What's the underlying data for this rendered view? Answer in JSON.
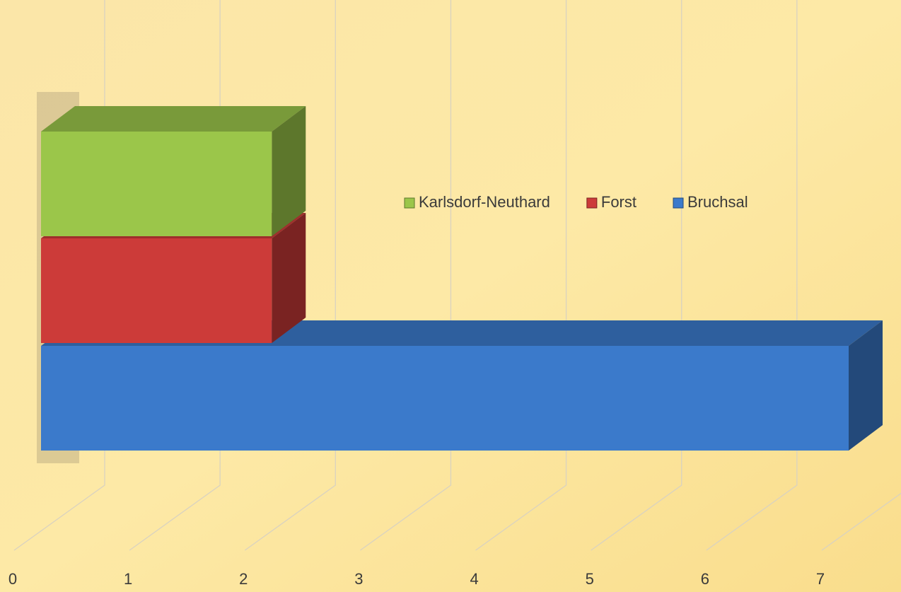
{
  "chart_data": {
    "type": "bar",
    "orientation": "horizontal",
    "three_d": true,
    "categories": [
      null
    ],
    "series": [
      {
        "name": "Karlsdorf-Neuthard",
        "color": "#9bc64a",
        "values": [
          2
        ]
      },
      {
        "name": "Forst",
        "color": "#cc3b39",
        "values": [
          2
        ]
      },
      {
        "name": "Bruchsal",
        "color": "#3b7acb",
        "values": [
          7
        ]
      }
    ],
    "xlim": [
      0,
      7
    ],
    "xticks": [
      0,
      1,
      2,
      3,
      4,
      5,
      6,
      7
    ],
    "grid": true,
    "legend": "center-right"
  }
}
